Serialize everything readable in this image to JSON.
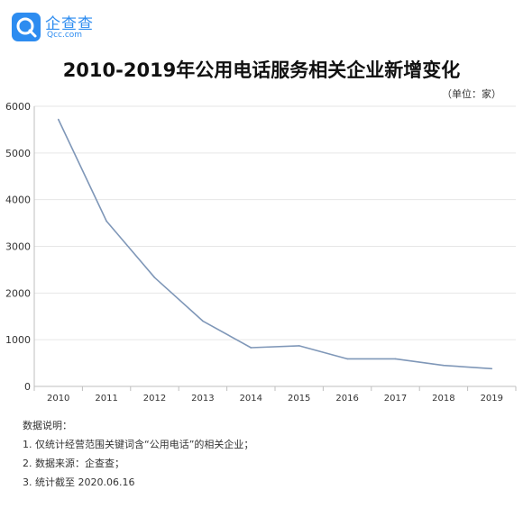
{
  "logo": {
    "name": "企查查",
    "domain": "Qcc.com"
  },
  "colors": {
    "brand": "#2d8cf0",
    "line": "#7f97b8",
    "axis": "#bfbfbf",
    "grid": "#e6e6e6"
  },
  "notes": {
    "heading": "数据说明：",
    "items": [
      "1. 仅统计经营范围关键词含“公用电话”的相关企业；",
      "2. 数据来源：企查查；",
      "3. 统计截至 2020.06.16"
    ]
  },
  "chart_data": {
    "type": "line",
    "title": "2010-2019年公用电话服务相关企业新增变化",
    "unit": "（单位：家）",
    "categories": [
      "2010",
      "2011",
      "2012",
      "2013",
      "2014",
      "2015",
      "2016",
      "2017",
      "2018",
      "2019"
    ],
    "series": [
      {
        "values": [
          5720,
          3540,
          2330,
          1400,
          830,
          870,
          590,
          590,
          450,
          380
        ]
      }
    ],
    "ylim": [
      0,
      6000
    ],
    "yticks": [
      0,
      1000,
      2000,
      3000,
      4000,
      5000,
      6000
    ],
    "grid": "horizontal",
    "legend": "none"
  }
}
